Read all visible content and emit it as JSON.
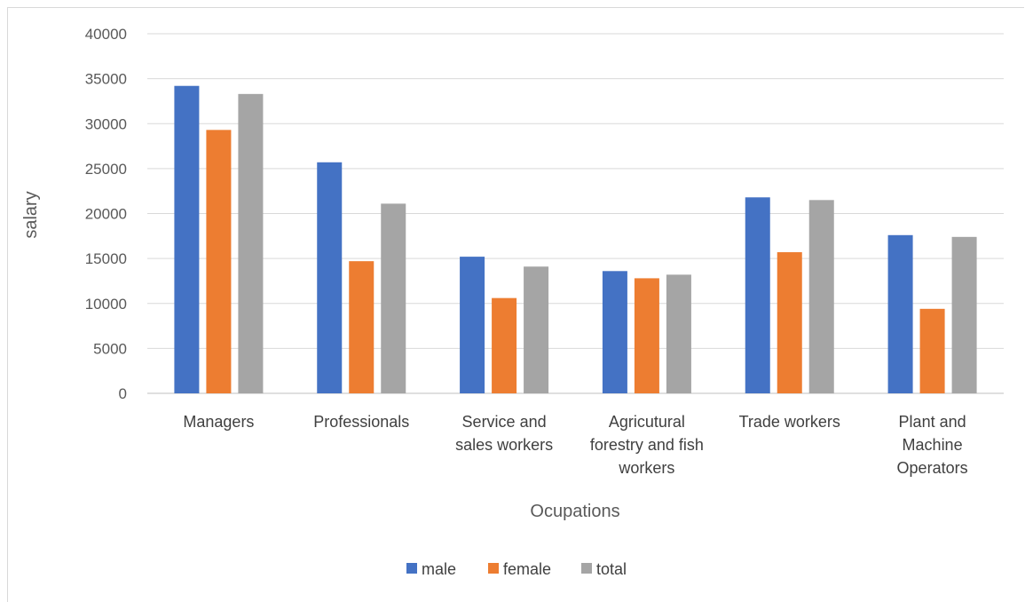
{
  "chart_data": {
    "type": "bar",
    "title": "",
    "xlabel": "Ocupations",
    "ylabel": "salary",
    "ylim": [
      0,
      40000
    ],
    "yticks": [
      0,
      5000,
      10000,
      15000,
      20000,
      25000,
      30000,
      35000,
      40000
    ],
    "grid": true,
    "legend_position": "bottom",
    "categories": [
      [
        "Managers"
      ],
      [
        "Professionals"
      ],
      [
        "Service and",
        "sales workers"
      ],
      [
        "Agricutural",
        "forestry and fish",
        "workers"
      ],
      [
        "Trade workers"
      ],
      [
        "Plant and",
        "Machine",
        "Operators"
      ]
    ],
    "series": [
      {
        "name": "male",
        "color": "#4472c4",
        "values": [
          34200,
          25700,
          15200,
          13600,
          21800,
          17600
        ]
      },
      {
        "name": "female",
        "color": "#ed7d31",
        "values": [
          29300,
          14700,
          10600,
          12800,
          15700,
          9400
        ]
      },
      {
        "name": "total",
        "color": "#a5a5a5",
        "values": [
          33300,
          21100,
          14100,
          13200,
          21500,
          17400
        ]
      }
    ]
  }
}
